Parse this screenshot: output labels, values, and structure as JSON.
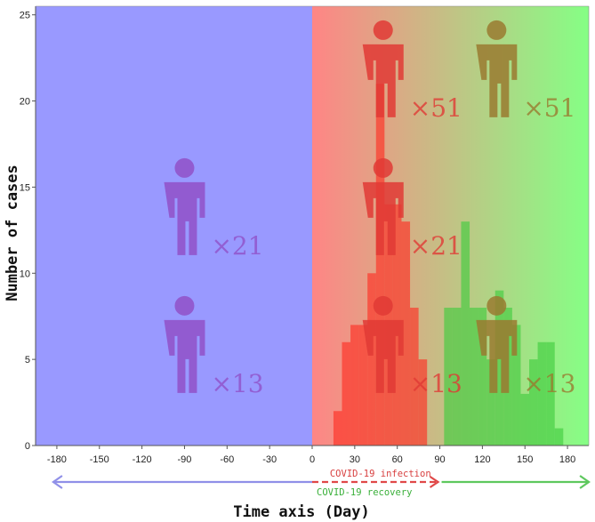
{
  "chart_data": {
    "type": "bar",
    "xlabel": "Time axis (Day)",
    "ylabel": "Number of cases",
    "xlim": [
      -195,
      195
    ],
    "ylim": [
      0,
      25.5
    ],
    "xticks": [
      -180,
      -150,
      -120,
      -90,
      -60,
      -30,
      0,
      30,
      60,
      90,
      120,
      150,
      180
    ],
    "yticks": [
      0,
      5,
      10,
      15,
      20,
      25
    ],
    "bin_width": 6,
    "series": [
      {
        "name": "COVID-19 infection",
        "color": "#ff2a20",
        "bars": [
          {
            "x": 18,
            "y": 2
          },
          {
            "x": 24,
            "y": 6
          },
          {
            "x": 30,
            "y": 7
          },
          {
            "x": 36,
            "y": 7
          },
          {
            "x": 42,
            "y": 10
          },
          {
            "x": 48,
            "y": 21
          },
          {
            "x": 54,
            "y": 14
          },
          {
            "x": 60,
            "y": 14
          },
          {
            "x": 66,
            "y": 13
          },
          {
            "x": 72,
            "y": 8
          },
          {
            "x": 78,
            "y": 5
          }
        ]
      },
      {
        "name": "COVID-19 recovery",
        "color": "#3ecb3e",
        "bars": [
          {
            "x": 96,
            "y": 8
          },
          {
            "x": 102,
            "y": 8
          },
          {
            "x": 108,
            "y": 13
          },
          {
            "x": 114,
            "y": 8
          },
          {
            "x": 120,
            "y": 8
          },
          {
            "x": 126,
            "y": 5
          },
          {
            "x": 132,
            "y": 9
          },
          {
            "x": 138,
            "y": 8
          },
          {
            "x": 144,
            "y": 7
          },
          {
            "x": 150,
            "y": 3
          },
          {
            "x": 156,
            "y": 5
          },
          {
            "x": 162,
            "y": 6
          },
          {
            "x": 168,
            "y": 6
          },
          {
            "x": 174,
            "y": 1
          }
        ]
      }
    ],
    "backgrounds": [
      {
        "region": "pre-infection",
        "x_range": [
          -195,
          0
        ],
        "color": "#9999ff"
      },
      {
        "region": "infection-to-recovery",
        "x_range": [
          0,
          195
        ],
        "color_start": "#ff8585",
        "color_end": "#85ff85"
      }
    ],
    "annotations": {
      "arrows": [
        {
          "label": "COVID-19 infection",
          "from": -180,
          "to": 90,
          "color": "#9090e8",
          "label_color": "#d84040"
        },
        {
          "label": "COVID-19 recovery",
          "from": 0,
          "to": 180,
          "color": "#5ec85e",
          "label_color": "#3ab03a"
        }
      ],
      "person_markers": [
        {
          "x": -90,
          "y": 3,
          "multiplier": "×13",
          "color": "#9050c8"
        },
        {
          "x": -90,
          "y": 11,
          "multiplier": "×21",
          "color": "#9050c8"
        },
        {
          "x": 50,
          "y": 3,
          "multiplier": "×13",
          "color": "#e03a35"
        },
        {
          "x": 50,
          "y": 11,
          "multiplier": "×21",
          "color": "#e03a35"
        },
        {
          "x": 50,
          "y": 19,
          "multiplier": "×51",
          "color": "#e03a35"
        },
        {
          "x": 130,
          "y": 3,
          "multiplier": "×13",
          "color": "#9a7a30"
        },
        {
          "x": 130,
          "y": 19,
          "multiplier": "×51",
          "color": "#9a7a30"
        }
      ]
    }
  }
}
